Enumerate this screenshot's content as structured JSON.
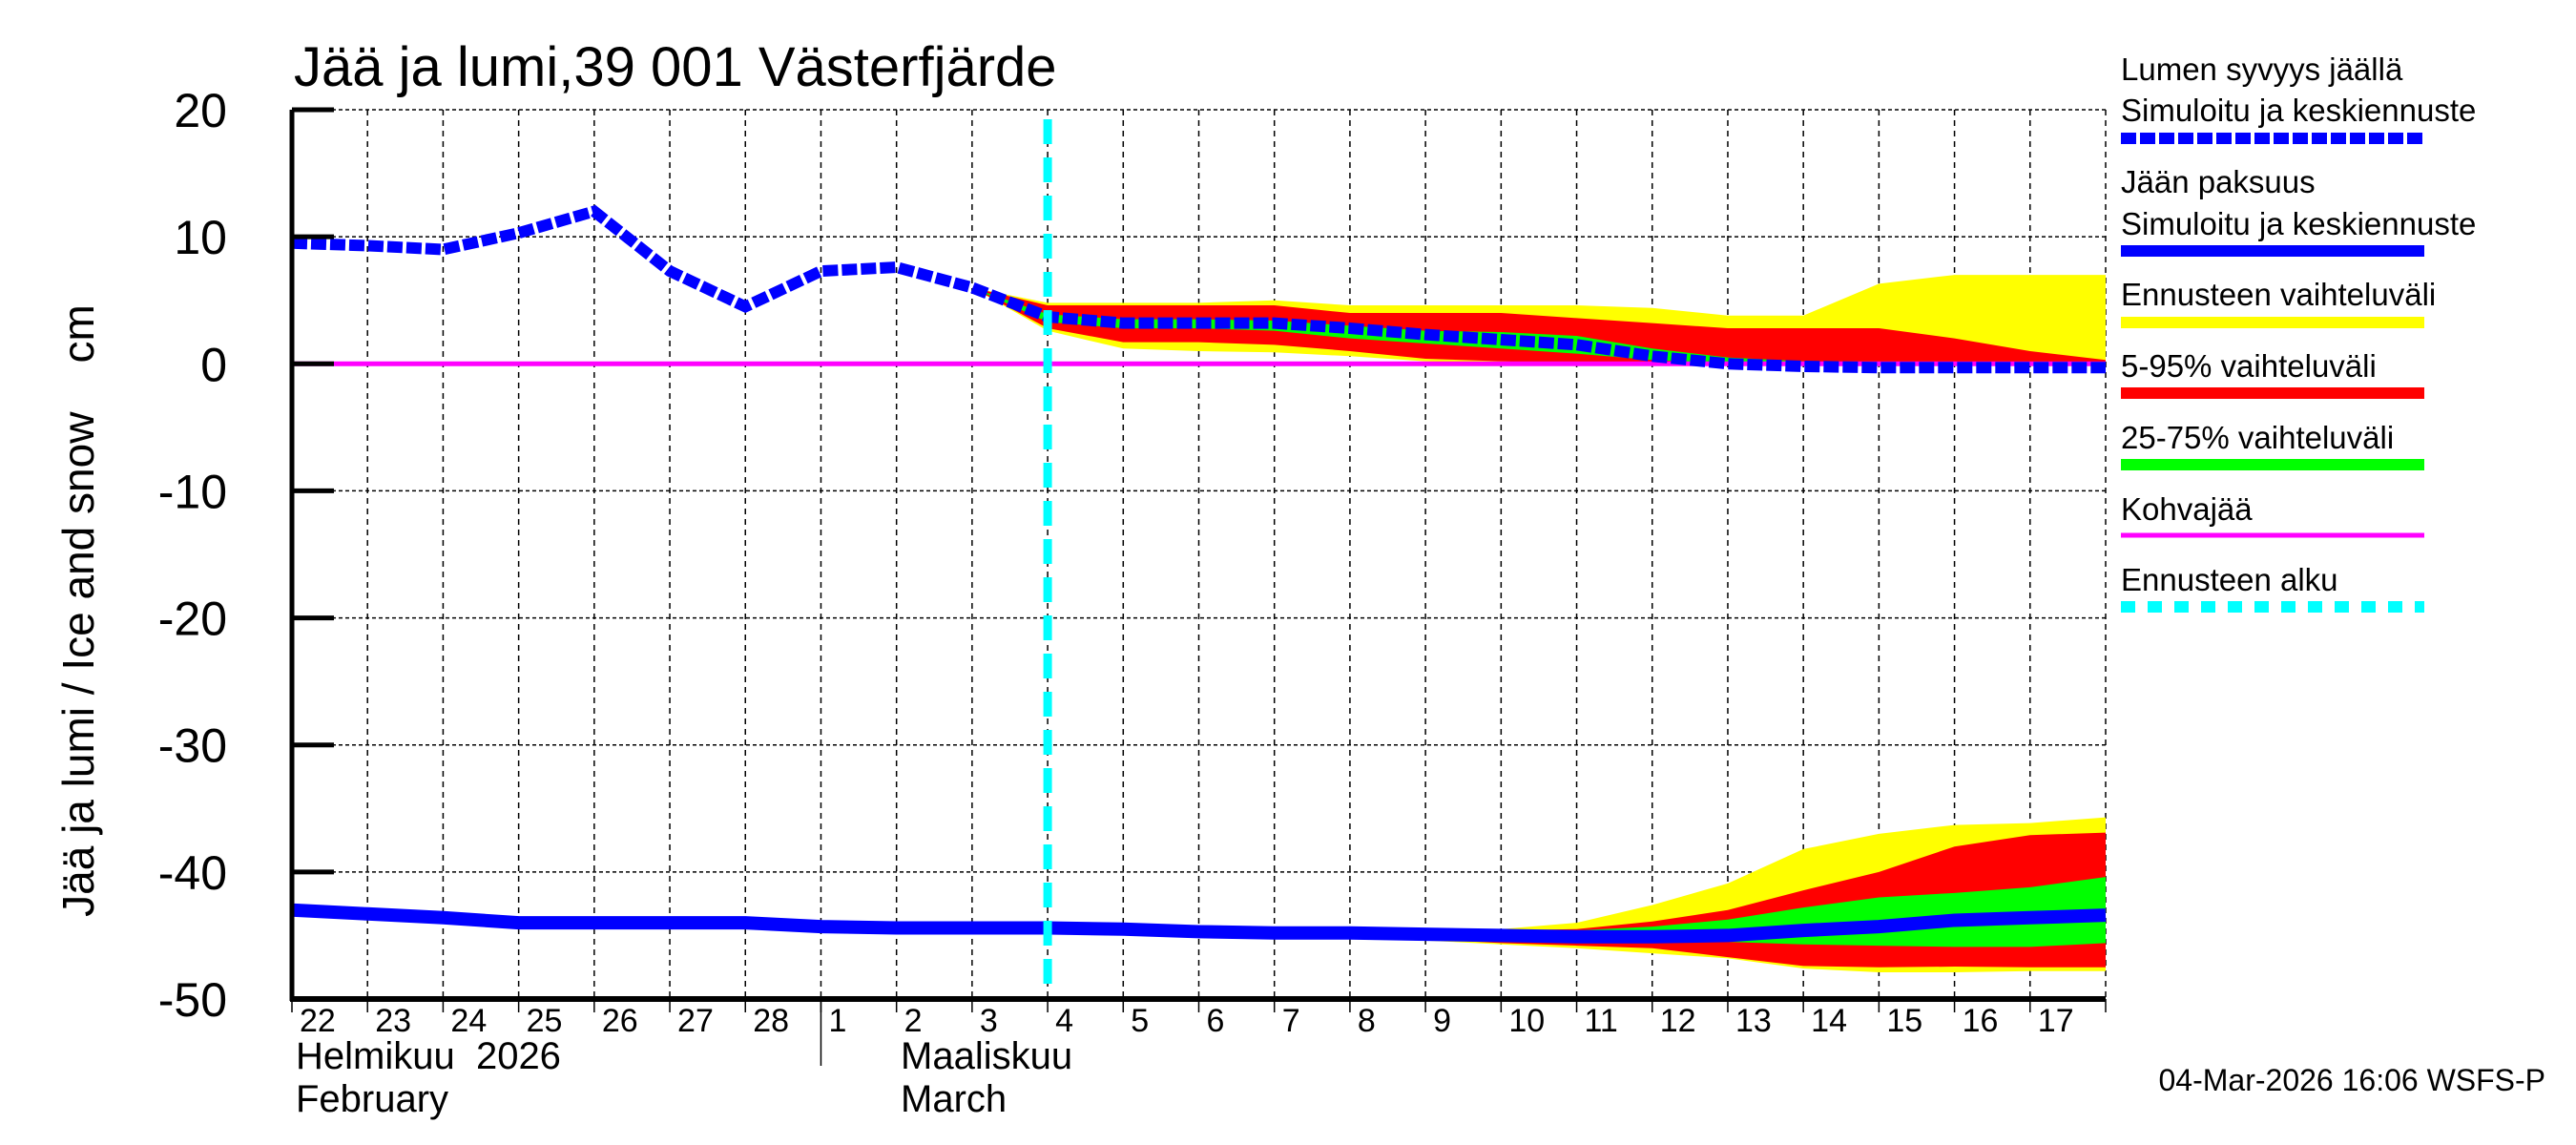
{
  "chart_data": {
    "type": "area",
    "title": "Jää ja lumi,39 001 Västerfjärde",
    "ylabel": "Jää ja lumi / Ice and snow    cm",
    "ylim": [
      -50,
      20
    ],
    "yticks": [
      20,
      10,
      0,
      -10,
      -20,
      -30,
      -40,
      -50
    ],
    "grid": true,
    "legend_position": "right",
    "x_dates": [
      "2026-02-22",
      "2026-02-23",
      "2026-02-24",
      "2026-02-25",
      "2026-02-26",
      "2026-02-27",
      "2026-02-28",
      "2026-03-01",
      "2026-03-02",
      "2026-03-03",
      "2026-03-04",
      "2026-03-05",
      "2026-03-06",
      "2026-03-07",
      "2026-03-08",
      "2026-03-09",
      "2026-03-10",
      "2026-03-11",
      "2026-03-12",
      "2026-03-13",
      "2026-03-14",
      "2026-03-15",
      "2026-03-16",
      "2026-03-17",
      "2026-03-18"
    ],
    "xtick_labels": [
      "22",
      "23",
      "24",
      "25",
      "26",
      "27",
      "28",
      "1",
      "2",
      "3",
      "4",
      "5",
      "6",
      "7",
      "8",
      "9",
      "10",
      "11",
      "12",
      "13",
      "14",
      "15",
      "16",
      "17"
    ],
    "months": [
      {
        "label_fi": "Helmikuu  2026",
        "label_en": "February"
      },
      {
        "label_fi": "Maaliskuu",
        "label_en": "March"
      }
    ],
    "forecast_start": "2026-03-04",
    "kohvajaa_level": 0,
    "snow": {
      "mean": [
        9.5,
        9.3,
        9.0,
        10.3,
        12.0,
        7.3,
        4.5,
        7.3,
        7.6,
        6.0,
        3.7,
        3.2,
        3.2,
        3.2,
        2.8,
        2.3,
        1.9,
        1.5,
        0.6,
        0.0,
        -0.2,
        -0.3,
        -0.3,
        -0.3,
        -0.3
      ],
      "bands_start": "2026-03-03",
      "range_upper": [
        6.0,
        4.8,
        4.8,
        4.8,
        5.0,
        4.6,
        4.6,
        4.6,
        4.6,
        4.4,
        3.8,
        3.8,
        6.3,
        7.0,
        7.0,
        7.0
      ],
      "range_lower": [
        6.0,
        2.6,
        1.2,
        1.0,
        0.9,
        0.6,
        0.2,
        0.0,
        0,
        0,
        0,
        0,
        0,
        0,
        0,
        0
      ],
      "p95": [
        6.0,
        4.6,
        4.6,
        4.6,
        4.6,
        4.0,
        4.0,
        4.0,
        3.6,
        3.2,
        2.8,
        2.8,
        2.8,
        2.0,
        1.0,
        0.3
      ],
      "p5": [
        6.0,
        2.8,
        1.7,
        1.7,
        1.5,
        1.0,
        0.4,
        0.2,
        0,
        0,
        0,
        0,
        0,
        0,
        0,
        0
      ],
      "p75": [
        6.0,
        3.9,
        3.5,
        3.5,
        3.4,
        3.0,
        2.6,
        2.5,
        2.2,
        1.2,
        0.5,
        0.2,
        0,
        0,
        0,
        0
      ],
      "p25": [
        6.0,
        3.3,
        2.8,
        2.8,
        2.6,
        2.0,
        1.6,
        1.2,
        0.8,
        0.3,
        0,
        0,
        0,
        0,
        0,
        0
      ]
    },
    "ice": {
      "mean": [
        -43.0,
        -43.3,
        -43.6,
        -44.0,
        -44.0,
        -44.0,
        -44.0,
        -44.3,
        -44.4,
        -44.4,
        -44.4,
        -44.5,
        -44.7,
        -44.8,
        -44.8,
        -44.9,
        -45.0,
        -45.1,
        -45.1,
        -45.0,
        -44.6,
        -44.3,
        -43.8,
        -43.6,
        -43.4
      ],
      "bands_start": "2026-03-04",
      "range_upper": [
        -44.4,
        -44.5,
        -44.6,
        -44.7,
        -44.7,
        -44.7,
        -44.5,
        -44.0,
        -42.6,
        -40.9,
        -38.2,
        -37.0,
        -36.3,
        -36.15,
        -35.7
      ],
      "range_lower": [
        -44.4,
        -44.6,
        -44.9,
        -45.0,
        -45.2,
        -45.4,
        -45.7,
        -46.0,
        -46.4,
        -46.8,
        -47.6,
        -47.9,
        -47.9,
        -47.8,
        -47.8
      ],
      "p95": [
        -44.4,
        -44.5,
        -44.6,
        -44.7,
        -44.7,
        -44.8,
        -44.6,
        -44.5,
        -43.9,
        -43.0,
        -41.45,
        -40.0,
        -38.0,
        -37.1,
        -36.9
      ],
      "p5": [
        -44.4,
        -44.6,
        -44.8,
        -45.0,
        -45.1,
        -45.3,
        -45.6,
        -45.8,
        -46.0,
        -46.7,
        -47.4,
        -47.5,
        -47.45,
        -47.5,
        -47.5
      ],
      "p75": [
        -44.4,
        -44.5,
        -44.7,
        -44.8,
        -44.8,
        -44.9,
        -44.7,
        -44.6,
        -44.3,
        -43.75,
        -42.8,
        -42.0,
        -41.65,
        -41.2,
        -40.4
      ],
      "p25": [
        -44.4,
        -44.6,
        -44.8,
        -44.9,
        -45.0,
        -45.1,
        -45.4,
        -45.5,
        -45.5,
        -45.5,
        -45.7,
        -45.8,
        -45.9,
        -45.9,
        -45.6
      ]
    },
    "colors": {
      "snow": "#0000ff",
      "ice": "#0000ff",
      "range": "#ffff00",
      "p5_95": "#ff0000",
      "p25_75": "#00ff00",
      "kohvajaa": "#ff00ff",
      "forecast_start": "#00ffff"
    },
    "legend": [
      {
        "line1": "Lumen syvyys jäällä",
        "line2": "Simuloitu ja keskiennuste",
        "style": "dashed",
        "color": "#0000ff"
      },
      {
        "line1": "Jään paksuus",
        "line2": "Simuloitu ja keskiennuste",
        "style": "solid",
        "color": "#0000ff"
      },
      {
        "line1": "Ennusteen vaihteluväli",
        "style": "solid",
        "color": "#ffff00"
      },
      {
        "line1": "5-95% vaihteluväli",
        "style": "solid",
        "color": "#ff0000"
      },
      {
        "line1": "25-75% vaihteluväli",
        "style": "solid",
        "color": "#00ff00"
      },
      {
        "line1": "Kohvajää",
        "style": "thin",
        "color": "#ff00ff"
      },
      {
        "line1": "Ennusteen alku",
        "style": "dashed-sparse",
        "color": "#00ffff"
      }
    ]
  },
  "footer": {
    "timestamp": "04-Mar-2026 16:06 WSFS-P"
  }
}
